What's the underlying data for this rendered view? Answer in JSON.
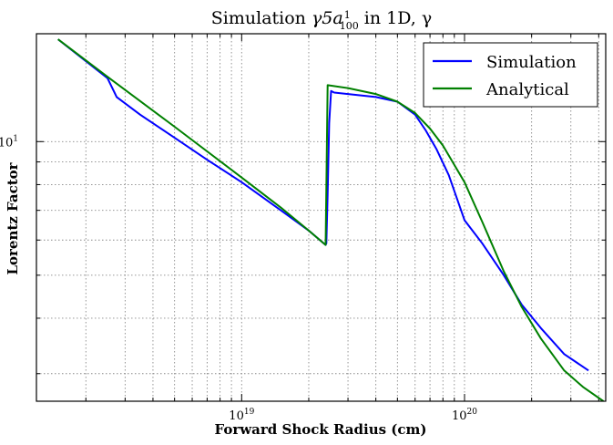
{
  "chart_data": {
    "type": "line",
    "title_prefix": "Simulation ",
    "title_math": "γ5a",
    "title_frac_num": "1",
    "title_frac_den": "100",
    "title_suffix": " in 1D, γ",
    "xlabel": "Forward Shock Radius (cm)",
    "ylabel": "Lorentz Factor",
    "xscale": "log",
    "yscale": "log",
    "xlim": [
      1.2e+18,
      4.3e+20
    ],
    "ylim": [
      2.6,
      17.5
    ],
    "xticks": [
      {
        "value": 1e+19,
        "base": "10",
        "exp": "19"
      },
      {
        "value": 1e+20,
        "base": "10",
        "exp": "20"
      }
    ],
    "yticks": [
      {
        "value": 10,
        "label": "10",
        "sup": "1"
      }
    ],
    "grid": true,
    "legend_position": "top-right",
    "series": [
      {
        "name": "Simulation",
        "color": "#0000ff",
        "points": [
          [
            1.5e+18,
            17.0
          ],
          [
            2.5e+18,
            13.9
          ],
          [
            2.75e+18,
            12.6
          ],
          [
            3.5e+18,
            11.5
          ],
          [
            5e+18,
            10.2
          ],
          [
            7e+18,
            9.1
          ],
          [
            1e+19,
            8.1
          ],
          [
            1.5e+19,
            7.0
          ],
          [
            2e+19,
            6.3
          ],
          [
            2.38e+19,
            5.85
          ],
          [
            2.4e+19,
            5.9
          ],
          [
            2.43e+19,
            7.6
          ],
          [
            2.47e+19,
            11.0
          ],
          [
            2.52e+19,
            13.0
          ],
          [
            2.6e+19,
            12.9
          ],
          [
            3e+19,
            12.8
          ],
          [
            4e+19,
            12.6
          ],
          [
            5e+19,
            12.3
          ],
          [
            6e+19,
            11.5
          ],
          [
            6.7e+19,
            10.6
          ],
          [
            7.5e+19,
            9.6
          ],
          [
            8.5e+19,
            8.4
          ],
          [
            1e+20,
            6.65
          ],
          [
            1.2e+20,
            5.9
          ],
          [
            1.5e+20,
            5.0
          ],
          [
            1.8e+20,
            4.3
          ],
          [
            2.2e+20,
            3.8
          ],
          [
            2.8e+20,
            3.32
          ],
          [
            3.6e+20,
            3.05
          ]
        ]
      },
      {
        "name": "Analytical",
        "color": "#008000",
        "points": [
          [
            1.5e+18,
            17.0
          ],
          [
            2.5e+18,
            14.0
          ],
          [
            5e+18,
            10.8
          ],
          [
            1e+19,
            8.3
          ],
          [
            1.5e+19,
            7.1
          ],
          [
            2e+19,
            6.3
          ],
          [
            2.38e+19,
            5.85
          ],
          [
            2.43e+19,
            13.4
          ],
          [
            3e+19,
            13.2
          ],
          [
            4e+19,
            12.8
          ],
          [
            5e+19,
            12.3
          ],
          [
            6e+19,
            11.6
          ],
          [
            7e+19,
            10.7
          ],
          [
            8e+19,
            9.8
          ],
          [
            1e+20,
            8.1
          ],
          [
            1.2e+20,
            6.6
          ],
          [
            1.5e+20,
            5.1
          ],
          [
            1.8e+20,
            4.25
          ],
          [
            2.2e+20,
            3.6
          ],
          [
            2.8e+20,
            3.05
          ],
          [
            3.4e+20,
            2.8
          ],
          [
            4.2e+20,
            2.6
          ]
        ]
      }
    ]
  }
}
